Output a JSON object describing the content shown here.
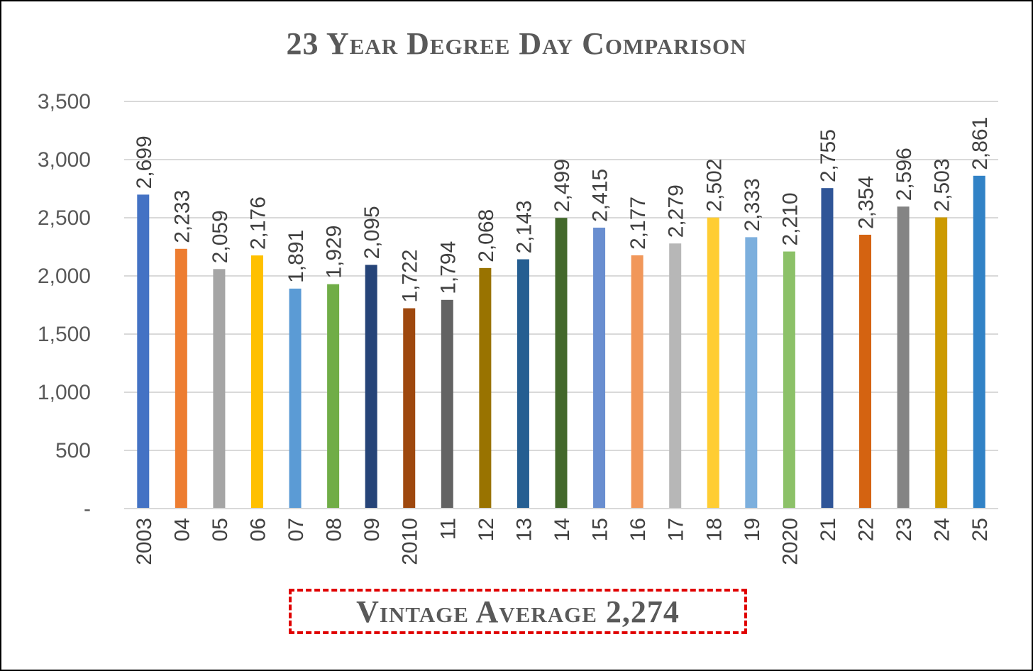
{
  "chart_data": {
    "type": "bar",
    "title": "23 Year Degree Day Comparison",
    "xlabel": "",
    "ylabel": "",
    "categories": [
      "2003",
      "04",
      "05",
      "06",
      "07",
      "08",
      "09",
      "2010",
      "11",
      "12",
      "13",
      "14",
      "15",
      "16",
      "17",
      "18",
      "19",
      "2020",
      "21",
      "22",
      "23",
      "24",
      "25"
    ],
    "values": [
      2699,
      2233,
      2059,
      2176,
      1891,
      1929,
      2095,
      1722,
      1794,
      2068,
      2143,
      2499,
      2415,
      2177,
      2279,
      2502,
      2333,
      2210,
      2755,
      2354,
      2596,
      2503,
      2861
    ],
    "data_labels": [
      "2,699",
      "2,233",
      "2,059",
      "2,176",
      "1,891",
      "1,929",
      "2,095",
      "1,722",
      "1,794",
      "2,068",
      "2,143",
      "2,499",
      "2,415",
      "2,177",
      "2,279",
      "2,502",
      "2,333",
      "2,210",
      "2,755",
      "2,354",
      "2,596",
      "2,503",
      "2,861"
    ],
    "colors": [
      "#4472c4",
      "#ed7d31",
      "#a5a5a5",
      "#ffc000",
      "#5b9bd5",
      "#70ad47",
      "#264478",
      "#9e480e",
      "#636363",
      "#997300",
      "#255e91",
      "#43682b",
      "#698ed0",
      "#f1975a",
      "#b7b7b7",
      "#ffcd33",
      "#7cafdd",
      "#8cc168",
      "#2f5597",
      "#d46311",
      "#848484",
      "#cc9a00",
      "#3182c6"
    ],
    "ylim": [
      0,
      3500
    ],
    "yticks": [
      0,
      500,
      1000,
      1500,
      2000,
      2500,
      3000,
      3500
    ],
    "ytick_labels": [
      "-",
      "500",
      "1,000",
      "1,500",
      "2,000",
      "2,500",
      "3,000",
      "3,500"
    ],
    "grid": true,
    "legend": "none"
  },
  "annotation": {
    "average_label": "Vintage Average 2,274",
    "border_color": "#e00000"
  }
}
